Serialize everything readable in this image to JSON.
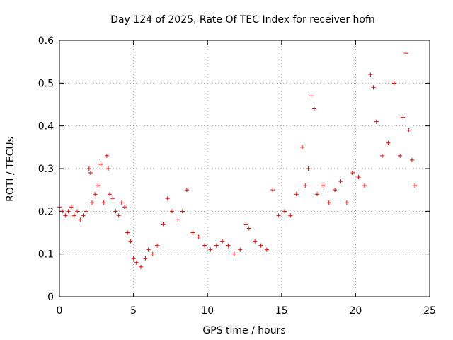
{
  "chart_data": {
    "type": "scatter",
    "title": "Day 124 of 2025, Rate Of TEC Index for receiver hofn",
    "xlabel": "GPS time / hours",
    "ylabel": "ROTI / TECUs",
    "xlim": [
      0,
      25
    ],
    "ylim": [
      0,
      0.6
    ],
    "xticks": [
      "0",
      "5",
      "10",
      "15",
      "20",
      "25"
    ],
    "yticks": [
      "0",
      "0.1",
      "0.2",
      "0.3",
      "0.4",
      "0.5",
      "0.6"
    ],
    "xtick_values": [
      0,
      5,
      10,
      15,
      20,
      25
    ],
    "ytick_values": [
      0,
      0.1,
      0.2,
      0.3,
      0.4,
      0.5,
      0.6
    ],
    "grid": true,
    "legend": "none",
    "marker": "plus",
    "color": "#ff0000",
    "series": [
      {
        "x": [
          0.0,
          0.2,
          0.4,
          0.6,
          0.8,
          1.0,
          1.2,
          1.4,
          1.6,
          1.8,
          2.0,
          2.1,
          2.2,
          2.4,
          2.6,
          2.8,
          3.0,
          3.2,
          3.3,
          3.4,
          3.6,
          3.8,
          4.0,
          4.2,
          4.4,
          4.6,
          4.8,
          5.0,
          5.2,
          5.5,
          5.8,
          6.0,
          6.3,
          6.6,
          7.0,
          7.3,
          7.6,
          8.0,
          8.3,
          8.6,
          9.0,
          9.4,
          9.8,
          10.2,
          10.6,
          11.0,
          11.4,
          11.8,
          12.2,
          12.6,
          12.8,
          13.2,
          13.6,
          14.0,
          14.4,
          14.8,
          15.2,
          15.6,
          16.0,
          16.4,
          16.6,
          16.8,
          17.0,
          17.2,
          17.4,
          17.8,
          18.2,
          18.6,
          19.0,
          19.4,
          19.8,
          20.2,
          20.6,
          21.0,
          21.2,
          21.4,
          21.8,
          22.2,
          22.6,
          23.0,
          23.2,
          23.4,
          23.6,
          23.8,
          24.0
        ],
        "y": [
          0.21,
          0.2,
          0.19,
          0.2,
          0.21,
          0.19,
          0.2,
          0.18,
          0.19,
          0.2,
          0.3,
          0.29,
          0.22,
          0.24,
          0.26,
          0.31,
          0.22,
          0.33,
          0.3,
          0.24,
          0.23,
          0.2,
          0.19,
          0.22,
          0.21,
          0.15,
          0.13,
          0.09,
          0.08,
          0.07,
          0.09,
          0.11,
          0.1,
          0.12,
          0.17,
          0.23,
          0.2,
          0.18,
          0.2,
          0.25,
          0.15,
          0.14,
          0.12,
          0.11,
          0.12,
          0.13,
          0.12,
          0.1,
          0.11,
          0.17,
          0.16,
          0.13,
          0.12,
          0.11,
          0.25,
          0.19,
          0.2,
          0.19,
          0.24,
          0.35,
          0.26,
          0.3,
          0.47,
          0.44,
          0.24,
          0.26,
          0.22,
          0.25,
          0.27,
          0.22,
          0.29,
          0.28,
          0.26,
          0.52,
          0.49,
          0.41,
          0.33,
          0.36,
          0.5,
          0.33,
          0.42,
          0.57,
          0.39,
          0.32,
          0.26
        ]
      }
    ]
  }
}
